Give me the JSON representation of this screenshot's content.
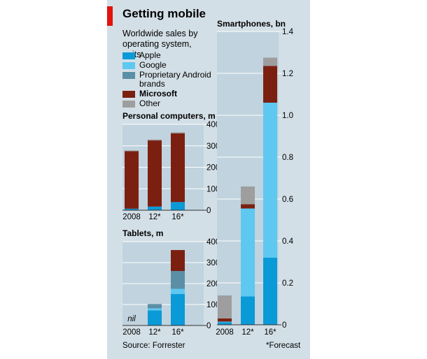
{
  "title": "Getting mobile",
  "subtitle": "Worldwide sales by operating system, units",
  "source": "Source: Forrester",
  "footnote": "*Forecast",
  "colors": {
    "apple": "#0a9ad8",
    "google": "#5ec8f1",
    "proprietary": "#5b8fa6",
    "microsoft": "#7b2011",
    "other": "#9e9e9e",
    "panel": "#d3dfe6",
    "plot": "#c0d3de",
    "accent": "#e3120b"
  },
  "legend": [
    {
      "key": "apple",
      "label": "Apple"
    },
    {
      "key": "google",
      "label": "Google"
    },
    {
      "key": "proprietary",
      "label": "Proprietary Android brands"
    },
    {
      "key": "microsoft",
      "label": "Microsoft"
    },
    {
      "key": "other",
      "label": "Other"
    }
  ],
  "chart_data": [
    {
      "type": "bar",
      "stacked": true,
      "title": "Personal computers, m",
      "categories": [
        "2008",
        "12*",
        "16*"
      ],
      "ylim": [
        0,
        400
      ],
      "yticks": [
        0,
        100,
        200,
        300,
        400
      ],
      "series": [
        {
          "name": "Apple",
          "key": "apple",
          "values": [
            7,
            17,
            38
          ]
        },
        {
          "name": "Google",
          "key": "google",
          "values": [
            0,
            0,
            0
          ]
        },
        {
          "name": "Proprietary Android brands",
          "key": "proprietary",
          "values": [
            0,
            0,
            0
          ]
        },
        {
          "name": "Microsoft",
          "key": "microsoft",
          "values": [
            268,
            308,
            320
          ]
        },
        {
          "name": "Other",
          "key": "other",
          "values": [
            3,
            4,
            5
          ]
        }
      ]
    },
    {
      "type": "bar",
      "stacked": true,
      "title": "Tablets, m",
      "categories": [
        "2008",
        "12*",
        "16*"
      ],
      "ylim": [
        0,
        400
      ],
      "yticks": [
        0,
        100,
        200,
        300,
        400
      ],
      "annotations": [
        {
          "category": "2008",
          "text": "nil"
        }
      ],
      "series": [
        {
          "name": "Apple",
          "key": "apple",
          "values": [
            0,
            72,
            150
          ]
        },
        {
          "name": "Google",
          "key": "google",
          "values": [
            0,
            10,
            25
          ]
        },
        {
          "name": "Proprietary Android brands",
          "key": "proprietary",
          "values": [
            0,
            20,
            85
          ]
        },
        {
          "name": "Microsoft",
          "key": "microsoft",
          "values": [
            0,
            0,
            100
          ]
        },
        {
          "name": "Other",
          "key": "other",
          "values": [
            0,
            0,
            0
          ]
        }
      ]
    },
    {
      "type": "bar",
      "stacked": true,
      "title": "Smartphones, bn",
      "categories": [
        "2008",
        "12*",
        "16*"
      ],
      "ylim": [
        0,
        1.4
      ],
      "yticks": [
        0,
        0.2,
        0.4,
        0.6,
        0.8,
        1.0,
        1.2,
        1.4
      ],
      "series": [
        {
          "name": "Apple",
          "key": "apple",
          "values": [
            0.012,
            0.135,
            0.32
          ]
        },
        {
          "name": "Google",
          "key": "google",
          "values": [
            0.003,
            0.42,
            0.74
          ]
        },
        {
          "name": "Proprietary Android brands",
          "key": "proprietary",
          "values": [
            0,
            0,
            0
          ]
        },
        {
          "name": "Microsoft",
          "key": "microsoft",
          "values": [
            0.015,
            0.02,
            0.175
          ]
        },
        {
          "name": "Other",
          "key": "other",
          "values": [
            0.11,
            0.085,
            0.04
          ]
        }
      ]
    }
  ]
}
